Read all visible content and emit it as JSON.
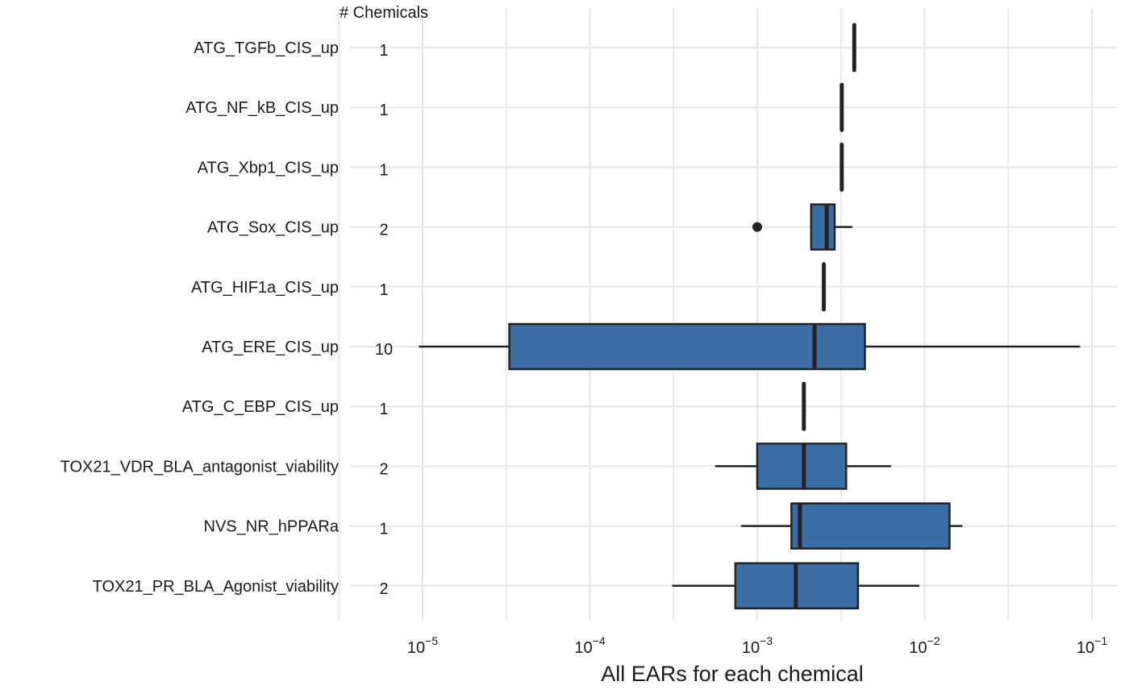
{
  "chart_data": {
    "type": "box",
    "orientation": "horizontal",
    "count_header": "# Chemicals",
    "xlabel": "All EARs for each chemical",
    "x_scale": "log10",
    "xlim": [
      7.5e-06,
      0.12
    ],
    "x_ticks": [
      {
        "value": 1e-05,
        "base": "10",
        "exp": "−5"
      },
      {
        "value": 0.0001,
        "base": "10",
        "exp": "−4"
      },
      {
        "value": 0.001,
        "base": "10",
        "exp": "−3"
      },
      {
        "value": 0.01,
        "base": "10",
        "exp": "−2"
      },
      {
        "value": 0.1,
        "base": "10",
        "exp": "−1"
      }
    ],
    "grid": true,
    "box_color": "#3a6ea5",
    "categories": [
      {
        "label": "ATG_TGFb_CIS_up",
        "count": "1",
        "lower_whisker": 0.0038,
        "q1": 0.0038,
        "median": 0.0038,
        "q3": 0.0038,
        "upper_whisker": 0.0038,
        "outliers": []
      },
      {
        "label": "ATG_NF_kB_CIS_up",
        "count": "1",
        "lower_whisker": 0.0032,
        "q1": 0.0032,
        "median": 0.0032,
        "q3": 0.0032,
        "upper_whisker": 0.0032,
        "outliers": []
      },
      {
        "label": "ATG_Xbp1_CIS_up",
        "count": "1",
        "lower_whisker": 0.0032,
        "q1": 0.0032,
        "median": 0.0032,
        "q3": 0.0032,
        "upper_whisker": 0.0032,
        "outliers": []
      },
      {
        "label": "ATG_Sox_CIS_up",
        "count": "2",
        "lower_whisker": 0.0021,
        "q1": 0.0021,
        "median": 0.0026,
        "q3": 0.0029,
        "upper_whisker": 0.0037,
        "outliers": [
          0.001
        ]
      },
      {
        "label": "ATG_HIF1a_CIS_up",
        "count": "1",
        "lower_whisker": 0.0025,
        "q1": 0.0025,
        "median": 0.0025,
        "q3": 0.0025,
        "upper_whisker": 0.0025,
        "outliers": []
      },
      {
        "label": "ATG_ERE_CIS_up",
        "count": "10",
        "lower_whisker": 9.5e-06,
        "q1": 3.3e-05,
        "median": 0.0022,
        "q3": 0.0044,
        "upper_whisker": 0.085,
        "outliers": []
      },
      {
        "label": "ATG_C_EBP_CIS_up",
        "count": "1",
        "lower_whisker": 0.0019,
        "q1": 0.0019,
        "median": 0.0019,
        "q3": 0.0019,
        "upper_whisker": 0.0019,
        "outliers": []
      },
      {
        "label": "TOX21_VDR_BLA_antagonist_viability",
        "count": "2",
        "lower_whisker": 0.00056,
        "q1": 0.001,
        "median": 0.0019,
        "q3": 0.0034,
        "upper_whisker": 0.0063,
        "outliers": []
      },
      {
        "label": "NVS_NR_hPPARa",
        "count": "1",
        "lower_whisker": 0.0008,
        "q1": 0.0016,
        "median": 0.0018,
        "q3": 0.0141,
        "upper_whisker": 0.0168,
        "outliers": []
      },
      {
        "label": "TOX21_PR_BLA_Agonist_viability",
        "count": "2",
        "lower_whisker": 0.00031,
        "q1": 0.00074,
        "median": 0.0017,
        "q3": 0.004,
        "upper_whisker": 0.0093,
        "outliers": []
      }
    ]
  }
}
